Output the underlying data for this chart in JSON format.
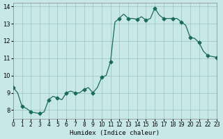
{
  "x": [
    0,
    0.5,
    1,
    1.5,
    2,
    2.5,
    3,
    3.5,
    4,
    4.5,
    5,
    5.5,
    6,
    6.5,
    7,
    7.5,
    8,
    8.5,
    9,
    9.5,
    10,
    10.5,
    11,
    11.25,
    11.5,
    11.75,
    12,
    12.25,
    12.5,
    13,
    13.5,
    14,
    14.5,
    15,
    15.5,
    16,
    16.5,
    17,
    17.5,
    18,
    18.5,
    19,
    19.5,
    20,
    20.5,
    21,
    21.5,
    22,
    22.5,
    23
  ],
  "y": [
    9.3,
    9.0,
    8.2,
    8.1,
    7.9,
    7.85,
    7.8,
    7.9,
    8.6,
    8.8,
    8.7,
    8.6,
    9.0,
    9.1,
    9.0,
    9.0,
    9.2,
    9.3,
    9.0,
    9.3,
    9.9,
    10.0,
    10.8,
    12.0,
    13.1,
    13.2,
    13.3,
    13.45,
    13.55,
    13.3,
    13.3,
    13.25,
    13.4,
    13.2,
    13.3,
    13.9,
    13.5,
    13.3,
    13.3,
    13.3,
    13.3,
    13.1,
    12.9,
    12.2,
    12.15,
    11.9,
    11.4,
    11.15,
    11.1,
    11.05
  ],
  "line_color": "#1a6b5a",
  "marker_color": "#1a6b5a",
  "bg_color": "#c8e8e8",
  "grid_color": "#a0c8c8",
  "xlabel": "Humidex (Indice chaleur)",
  "ylabel": "",
  "xlim": [
    0,
    23
  ],
  "ylim": [
    7.5,
    14.2
  ],
  "yticks": [
    8,
    9,
    10,
    11,
    12,
    13,
    14
  ],
  "xticks": [
    0,
    1,
    2,
    3,
    4,
    5,
    6,
    7,
    8,
    9,
    10,
    11,
    12,
    13,
    14,
    15,
    16,
    17,
    18,
    19,
    20,
    21,
    22,
    23
  ],
  "marker_x": [
    0,
    1,
    2,
    3,
    4,
    5,
    6,
    7,
    8,
    9,
    10,
    11,
    12,
    13,
    14,
    15,
    16,
    17,
    18,
    19,
    20,
    21,
    22,
    23
  ],
  "marker_y": [
    9.3,
    8.2,
    7.9,
    7.8,
    8.6,
    8.7,
    9.0,
    9.0,
    9.2,
    9.0,
    9.9,
    10.8,
    13.3,
    13.3,
    13.25,
    13.2,
    13.9,
    13.3,
    13.3,
    13.1,
    12.2,
    11.9,
    11.15,
    11.05
  ]
}
